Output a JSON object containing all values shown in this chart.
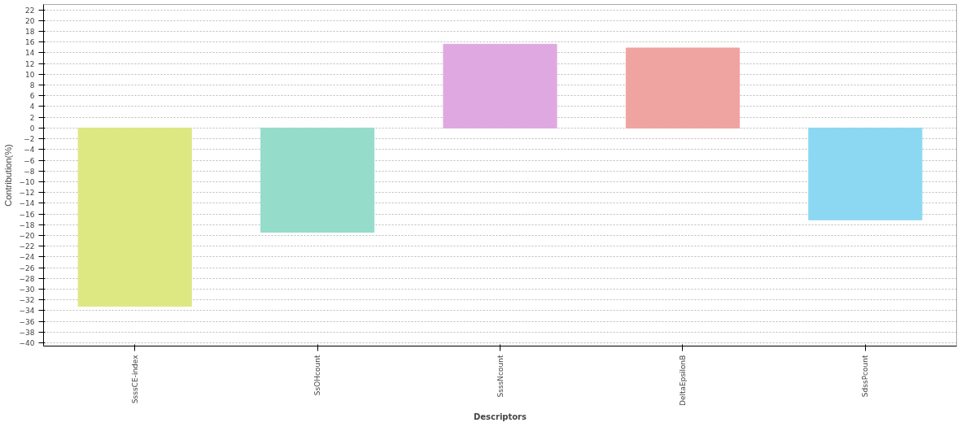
{
  "chart_data": {
    "type": "bar",
    "xlabel": "Descriptors",
    "ylabel": "Contribution(%)",
    "categories": [
      "SsssCE-index",
      "SsOHcount",
      "SsssNcount",
      "DeltaEpsilonB",
      "SdssPcount"
    ],
    "values": [
      -33.2,
      -19.4,
      15.6,
      14.9,
      -17.1
    ],
    "colors": [
      "#dde882",
      "#96dccb",
      "#e0a8e0",
      "#f0a4a2",
      "#8cd8f2"
    ],
    "ylim": [
      -40.6,
      23
    ],
    "yticks": [
      -40,
      -38,
      -36,
      -34,
      -32,
      -30,
      -28,
      -26,
      -24,
      -22,
      -20,
      -18,
      -16,
      -14,
      -12,
      -10,
      -8,
      -6,
      -4,
      -2,
      0,
      2,
      4,
      6,
      8,
      10,
      12,
      14,
      16,
      18,
      20,
      22
    ],
    "grid": "y"
  }
}
